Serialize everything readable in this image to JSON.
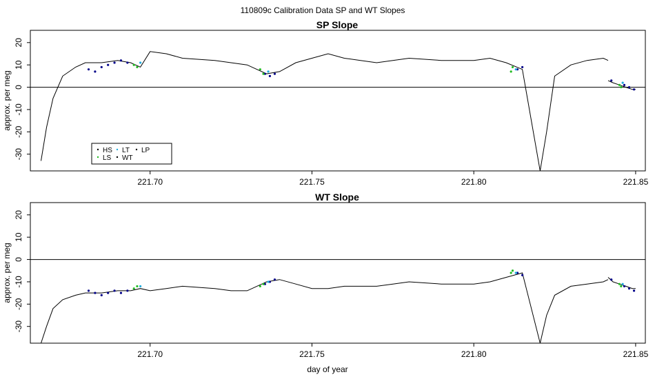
{
  "figure": {
    "main_title": "110809c   Calibration Data SP and WT Slopes",
    "xlabel": "day of year"
  },
  "chart_data": [
    {
      "type": "line",
      "title": "SP Slope",
      "ylabel": "approx. per meg",
      "xlim": [
        221.663,
        221.853
      ],
      "ylim": [
        -37.5,
        25.5
      ],
      "x_ticks": [
        221.7,
        221.75,
        221.8,
        221.85
      ],
      "x_tick_labels": [
        "221.70",
        "221.75",
        "221.80",
        "221.85"
      ],
      "y_ticks": [
        20,
        10,
        0,
        -10,
        -20,
        -30
      ],
      "y_tick_labels": [
        "20",
        "10",
        "0",
        "-10",
        "-20",
        "-30"
      ],
      "hline": 0,
      "legend": {
        "placement": "bottom-left",
        "entries": [
          {
            "label": "HS",
            "color": "#000000"
          },
          {
            "label": "LT",
            "color": "#1faadd"
          },
          {
            "label": "LP",
            "color": "#000000"
          },
          {
            "label": "LS",
            "color": "#22bb22"
          },
          {
            "label": "WT",
            "color": "#000000"
          }
        ]
      },
      "series": [
        {
          "type": "line",
          "color": "#000000",
          "x": [
            221.6663,
            221.668,
            221.67,
            221.673,
            221.677,
            221.68,
            221.685,
            221.69,
            221.694,
            221.697,
            221.7,
            221.705,
            221.71,
            221.72,
            221.725,
            221.73,
            221.733,
            221.736,
            221.74,
            221.745,
            221.75,
            221.755,
            221.76,
            221.765,
            221.77,
            221.775,
            221.78,
            221.79,
            221.8,
            221.805,
            221.81,
            221.815,
            221.8205,
            221.8225,
            221.825,
            221.83,
            221.835,
            221.84,
            221.8415
          ],
          "y": [
            -33,
            -18,
            -5,
            5,
            9,
            11,
            11,
            12,
            11,
            9,
            16,
            15,
            13,
            12,
            11,
            10,
            8,
            6,
            7,
            11,
            13,
            15,
            13,
            12,
            11,
            12,
            13,
            12,
            12,
            13,
            11,
            8,
            -37.5,
            -20,
            5,
            10,
            12,
            13,
            12
          ]
        },
        {
          "type": "line",
          "color": "#000000",
          "x": [
            221.8415,
            221.843,
            221.845,
            221.847,
            221.849,
            221.85
          ],
          "y": [
            3,
            2,
            1,
            0,
            -1,
            -1
          ]
        },
        {
          "type": "points",
          "label": "HS",
          "color": "#000088",
          "x": [
            221.681,
            221.683,
            221.685,
            221.687,
            221.689,
            221.691,
            221.693,
            221.7355,
            221.737,
            221.7385,
            221.8135,
            221.815,
            221.8425,
            221.8465,
            221.848,
            221.8495
          ],
          "y": [
            8,
            7,
            9,
            10,
            11,
            12,
            11,
            6,
            5,
            6,
            8,
            9,
            3,
            1,
            0,
            -1
          ]
        },
        {
          "type": "points",
          "label": "LS",
          "color": "#22bb22",
          "x": [
            221.695,
            221.696,
            221.734,
            221.735,
            221.8115,
            221.812,
            221.845,
            221.8455
          ],
          "y": [
            10,
            9,
            8,
            6,
            7,
            9,
            1,
            0
          ]
        },
        {
          "type": "points",
          "label": "LT",
          "color": "#1faadd",
          "x": [
            221.697,
            221.7365,
            221.813,
            221.846
          ],
          "y": [
            11,
            7,
            8,
            2
          ]
        }
      ]
    },
    {
      "type": "line",
      "title": "WT Slope",
      "ylabel": "approx. per meg",
      "xlim": [
        221.663,
        221.853
      ],
      "ylim": [
        -37.5,
        25.5
      ],
      "x_ticks": [
        221.7,
        221.75,
        221.8,
        221.85
      ],
      "x_tick_labels": [
        "221.70",
        "221.75",
        "221.80",
        "221.85"
      ],
      "y_ticks": [
        20,
        10,
        0,
        -10,
        -20,
        -30
      ],
      "y_tick_labels": [
        "20",
        "10",
        "0",
        "-10",
        "-20",
        "-30"
      ],
      "hline": 0,
      "series": [
        {
          "type": "line",
          "color": "#000000",
          "x": [
            221.6663,
            221.668,
            221.67,
            221.673,
            221.677,
            221.68,
            221.685,
            221.69,
            221.694,
            221.697,
            221.7,
            221.705,
            221.71,
            221.72,
            221.725,
            221.73,
            221.733,
            221.736,
            221.74,
            221.745,
            221.75,
            221.755,
            221.76,
            221.765,
            221.77,
            221.775,
            221.78,
            221.79,
            221.8,
            221.805,
            221.81,
            221.815,
            221.8205,
            221.8225,
            221.825,
            221.83,
            221.835,
            221.84,
            221.8415
          ],
          "y": [
            -37.5,
            -30,
            -22,
            -18,
            -16,
            -15,
            -15,
            -14,
            -14,
            -13,
            -14,
            -13,
            -12,
            -13,
            -14,
            -14,
            -12,
            -10,
            -9,
            -11,
            -13,
            -13,
            -12,
            -12,
            -12,
            -11,
            -10,
            -11,
            -11,
            -10,
            -8,
            -6,
            -37.5,
            -25,
            -16,
            -12,
            -11,
            -10,
            -9
          ]
        },
        {
          "type": "line",
          "color": "#000000",
          "x": [
            221.8415,
            221.843,
            221.845,
            221.847,
            221.849,
            221.85
          ],
          "y": [
            -8,
            -10,
            -11,
            -12,
            -13,
            -13
          ]
        },
        {
          "type": "points",
          "label": "HS",
          "color": "#000088",
          "x": [
            221.681,
            221.683,
            221.685,
            221.687,
            221.689,
            221.691,
            221.693,
            221.7355,
            221.737,
            221.7385,
            221.8135,
            221.815,
            221.8425,
            221.8465,
            221.848,
            221.8495
          ],
          "y": [
            -14,
            -15,
            -16,
            -15,
            -14,
            -15,
            -14,
            -11,
            -10,
            -9,
            -6,
            -7,
            -9,
            -12,
            -13,
            -14
          ]
        },
        {
          "type": "points",
          "label": "LS",
          "color": "#22bb22",
          "x": [
            221.695,
            221.696,
            221.734,
            221.735,
            221.8115,
            221.812,
            221.845,
            221.8455
          ],
          "y": [
            -13,
            -12,
            -12,
            -11,
            -6,
            -5,
            -11,
            -12
          ]
        },
        {
          "type": "points",
          "label": "LT",
          "color": "#1faadd",
          "x": [
            221.697,
            221.7365,
            221.813,
            221.846
          ],
          "y": [
            -12,
            -10,
            -6,
            -11
          ]
        }
      ]
    }
  ]
}
